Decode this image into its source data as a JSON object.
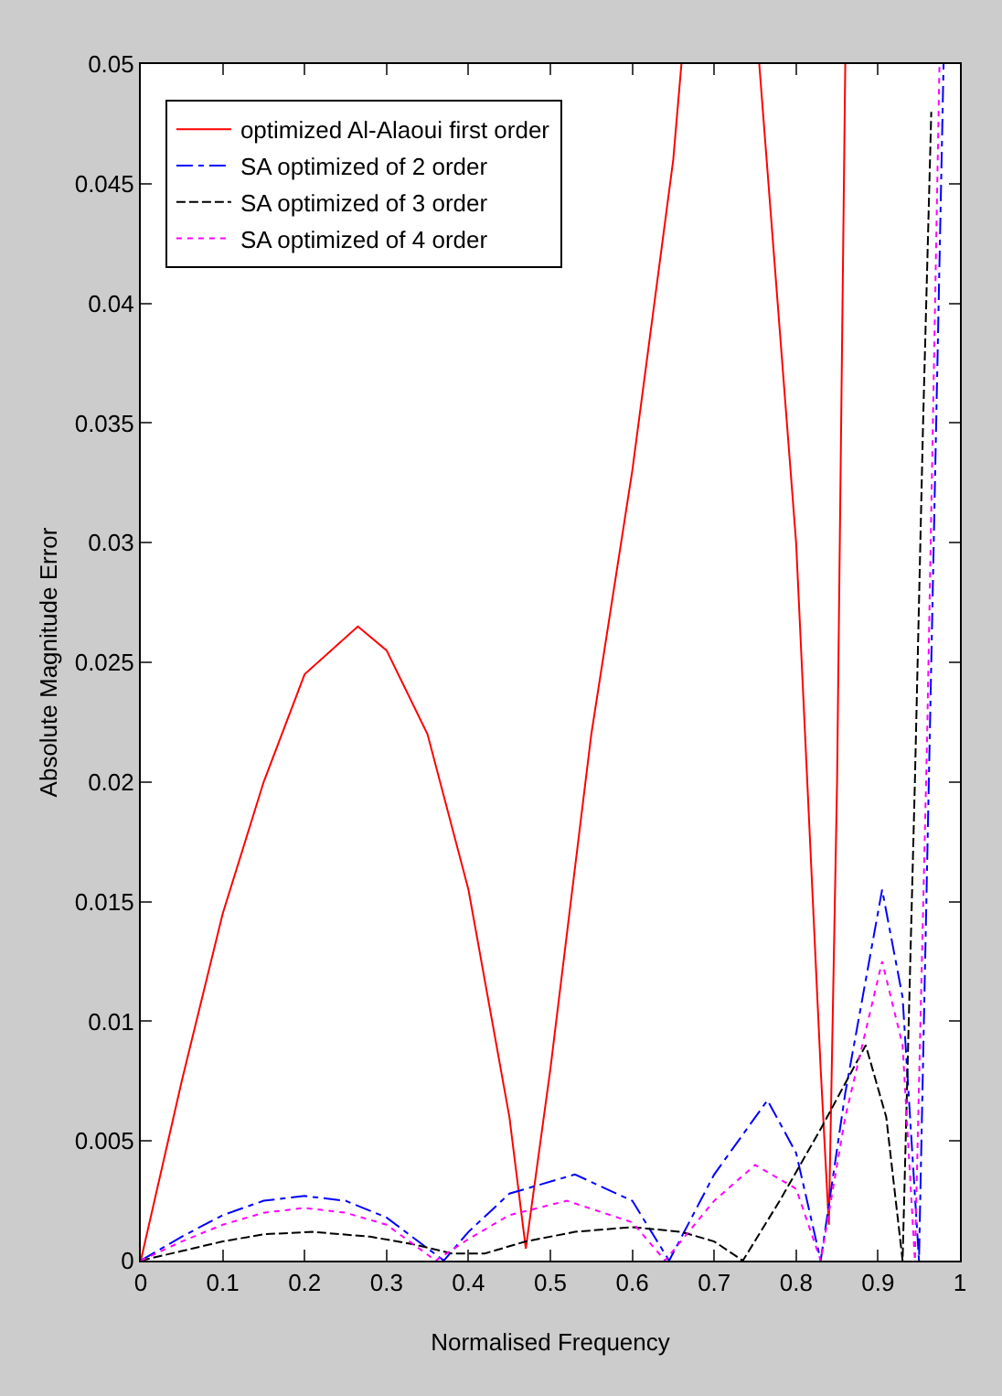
{
  "chart_data": {
    "type": "line",
    "xlabel": "Normalised Frequency",
    "ylabel": "Absolute Magnitude Error",
    "xlim": [
      0,
      1
    ],
    "ylim": [
      0,
      0.05
    ],
    "xticks": [
      0,
      0.1,
      0.2,
      0.3,
      0.4,
      0.5,
      0.6,
      0.7,
      0.8,
      0.9,
      1
    ],
    "yticks": [
      0,
      0.005,
      0.01,
      0.015,
      0.02,
      0.025,
      0.03,
      0.035,
      0.04,
      0.045,
      0.05
    ],
    "grid": false,
    "legend": "top left",
    "marker": "none",
    "series": [
      {
        "name": "optimized Al-Alaoui first order",
        "color": "#ff0000",
        "line_style": "solid",
        "x": [
          0,
          0.05,
          0.1,
          0.15,
          0.2,
          0.265,
          0.3,
          0.35,
          0.4,
          0.45,
          0.47,
          0.5,
          0.55,
          0.6,
          0.65,
          0.66,
          0.7,
          0.755,
          0.8,
          0.83,
          0.84,
          0.85,
          0.86
        ],
        "values": [
          0,
          0.0075,
          0.0145,
          0.02,
          0.0245,
          0.0265,
          0.0255,
          0.022,
          0.0155,
          0.006,
          0.0005,
          0.008,
          0.022,
          0.033,
          0.046,
          0.05,
          null,
          0.05,
          0.03,
          0.008,
          0.0015,
          0.02,
          0.05
        ]
      },
      {
        "name": "SA optimized of 2 order",
        "color": "#0000ff",
        "line_style": "dashdot",
        "x": [
          0,
          0.05,
          0.1,
          0.15,
          0.2,
          0.25,
          0.3,
          0.37,
          0.4,
          0.45,
          0.53,
          0.6,
          0.645,
          0.7,
          0.765,
          0.8,
          0.83,
          0.86,
          0.905,
          0.93,
          0.95,
          0.965,
          0.98
        ],
        "values": [
          0,
          0.001,
          0.0019,
          0.0025,
          0.0027,
          0.0025,
          0.0018,
          0,
          0.0012,
          0.0028,
          0.0036,
          0.0025,
          0,
          0.0036,
          0.0067,
          0.0045,
          0,
          0.007,
          0.0155,
          0.011,
          0,
          0.025,
          0.05
        ]
      },
      {
        "name": "SA optimized of 3 order",
        "color": "#000000",
        "line_style": "dashed",
        "x": [
          0,
          0.05,
          0.1,
          0.15,
          0.21,
          0.28,
          0.33,
          0.38,
          0.42,
          0.47,
          0.53,
          0.6,
          0.66,
          0.7,
          0.735,
          0.78,
          0.83,
          0.885,
          0.91,
          0.93,
          0.945,
          0.955,
          0.965
        ],
        "values": [
          0,
          0.0004,
          0.0008,
          0.0011,
          0.0012,
          0.001,
          0.0007,
          0.0003,
          0.0003,
          0.0008,
          0.0012,
          0.0014,
          0.0012,
          0.0008,
          0,
          0.0025,
          0.0055,
          0.009,
          0.006,
          0,
          0.02,
          0.035,
          0.048
        ]
      },
      {
        "name": "SA optimized of 4 order",
        "color": "#ff00ff",
        "line_style": "dotted",
        "x": [
          0,
          0.05,
          0.1,
          0.15,
          0.2,
          0.25,
          0.3,
          0.36,
          0.4,
          0.45,
          0.52,
          0.6,
          0.64,
          0.7,
          0.75,
          0.8,
          0.83,
          0.86,
          0.905,
          0.93,
          0.945,
          0.96,
          0.975
        ],
        "values": [
          0,
          0.0008,
          0.0015,
          0.002,
          0.0022,
          0.002,
          0.0015,
          0,
          0.0009,
          0.0019,
          0.0025,
          0.0016,
          0,
          0.0025,
          0.004,
          0.003,
          0,
          0.006,
          0.0125,
          0.009,
          0,
          0.022,
          0.05
        ]
      }
    ]
  }
}
